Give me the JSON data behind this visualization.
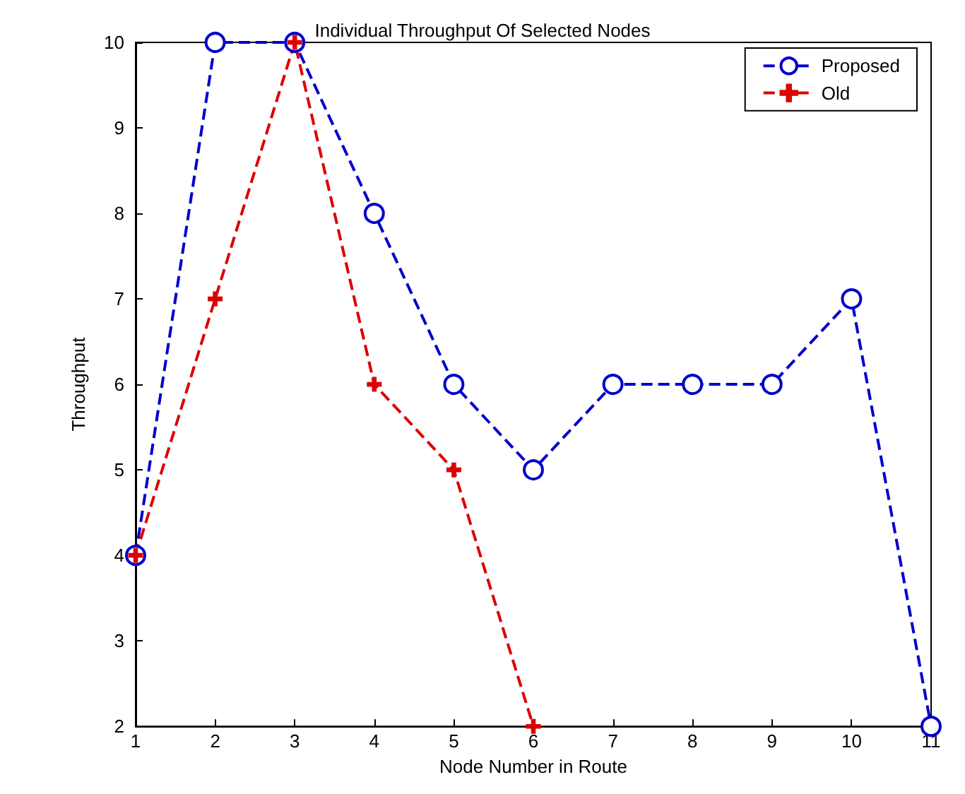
{
  "chart_data": {
    "type": "line",
    "title": "Individual Throughput Of Selected Nodes",
    "xlabel": "Node Number in Route",
    "ylabel": "Throughput",
    "x": [
      1,
      2,
      3,
      4,
      5,
      6,
      7,
      8,
      9,
      10,
      11
    ],
    "series": [
      {
        "name": "Proposed",
        "color": "#0000cc",
        "marker": "circle",
        "values": [
          4,
          10,
          10,
          8,
          6,
          5,
          6,
          6,
          6,
          7,
          2
        ]
      },
      {
        "name": "Old",
        "color": "#dd0000",
        "marker": "cross",
        "x": [
          1,
          2,
          3,
          4,
          5,
          6
        ],
        "values": [
          4,
          7,
          10,
          6,
          5,
          2
        ]
      }
    ],
    "xlim": [
      1,
      11
    ],
    "xticks": [
      1,
      2,
      3,
      4,
      5,
      6,
      7,
      8,
      9,
      10,
      11
    ],
    "ylim": [
      2,
      10
    ],
    "yticks": [
      2,
      3,
      4,
      5,
      6,
      7,
      8,
      9,
      10
    ],
    "grid": false,
    "legend": "top right",
    "line_style": "dashed"
  }
}
